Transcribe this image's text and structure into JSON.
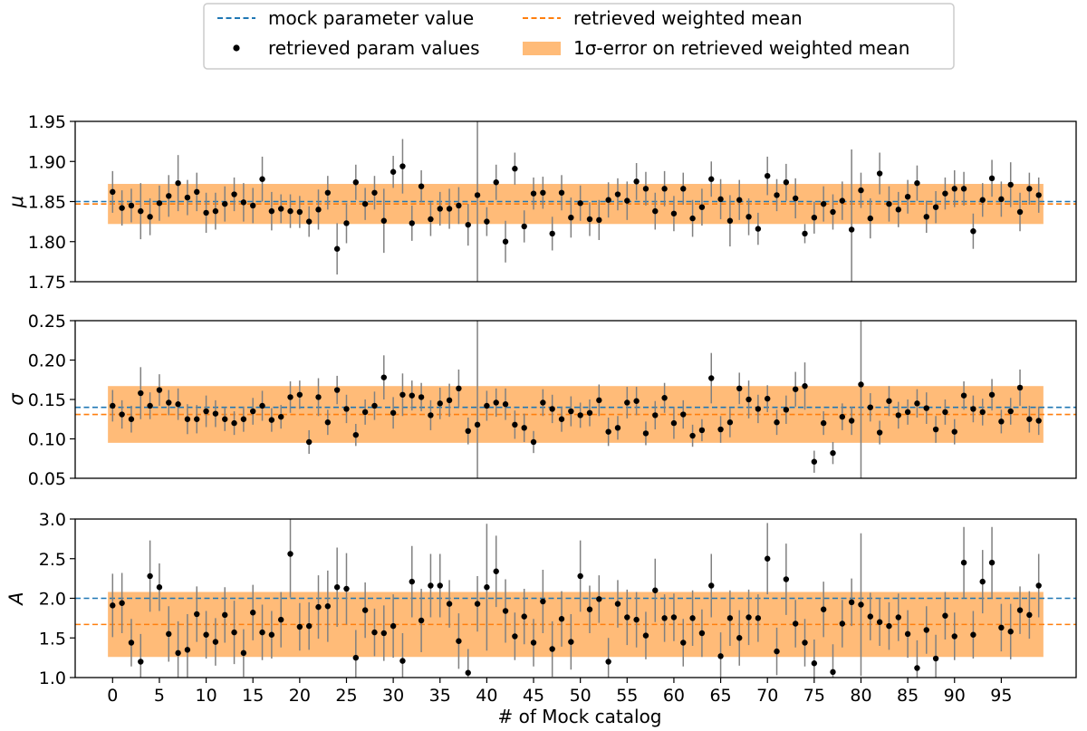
{
  "chart_data": {
    "type": "scatter",
    "xlabel": "# of Mock catalog",
    "x_ticks": [
      0,
      5,
      10,
      15,
      20,
      25,
      30,
      35,
      40,
      45,
      50,
      55,
      60,
      65,
      70,
      75,
      80,
      85,
      90,
      95
    ],
    "x_range": [
      -4,
      103
    ],
    "legend": {
      "placement": "top-center",
      "entries": [
        {
          "label": "mock parameter value",
          "kind": "dashed-line",
          "color": "#1f77b4"
        },
        {
          "label": "retrieved weighted mean",
          "kind": "dashed-line",
          "color": "#ff7f0e"
        },
        {
          "label": "retrieved param values",
          "kind": "point",
          "color": "#000000"
        },
        {
          "label": "1σ-error on retrieved weighted mean",
          "kind": "band",
          "color": "#ffbb78"
        }
      ]
    },
    "panels": [
      {
        "ylabel": "μ",
        "ylim": [
          1.75,
          1.95
        ],
        "y_ticks": [
          1.75,
          1.8,
          1.85,
          1.9,
          1.95
        ],
        "y_tick_labels": [
          "1.75",
          "1.80",
          "1.85",
          "1.90",
          "1.95"
        ],
        "mock_value": 1.85,
        "weighted_mean": 1.847,
        "band": [
          1.822,
          1.872
        ],
        "values": [
          1.862,
          1.842,
          1.845,
          1.838,
          1.831,
          1.848,
          1.857,
          1.873,
          1.855,
          1.862,
          1.836,
          1.838,
          1.847,
          1.859,
          1.849,
          1.845,
          1.878,
          1.838,
          1.841,
          1.838,
          1.837,
          1.825,
          1.84,
          1.861,
          1.791,
          1.823,
          1.874,
          1.847,
          1.861,
          1.826,
          1.887,
          1.894,
          1.823,
          1.869,
          1.828,
          1.841,
          1.841,
          1.845,
          1.821,
          1.858,
          1.825,
          1.874,
          1.8,
          1.891,
          1.819,
          1.86,
          1.861,
          1.81,
          1.861,
          1.83,
          1.848,
          1.828,
          1.827,
          1.852,
          1.859,
          1.851,
          1.875,
          1.866,
          1.838,
          1.866,
          1.835,
          1.866,
          1.829,
          1.843,
          1.878,
          1.853,
          1.826,
          1.852,
          1.831,
          1.816,
          1.882,
          1.858,
          1.874,
          1.854,
          1.81,
          1.83,
          1.847,
          1.837,
          1.851,
          1.815,
          1.864,
          1.829,
          1.885,
          1.847,
          1.84,
          1.856,
          1.873,
          1.831,
          1.843,
          1.86,
          1.866,
          1.866,
          1.813,
          1.852,
          1.879,
          1.853,
          1.871,
          1.837,
          1.866,
          1.858
        ],
        "errors": [
          0.026,
          0.022,
          0.021,
          0.035,
          0.023,
          0.022,
          0.026,
          0.035,
          0.022,
          0.024,
          0.025,
          0.023,
          0.022,
          0.021,
          0.024,
          0.022,
          0.028,
          0.024,
          0.018,
          0.021,
          0.02,
          0.019,
          0.025,
          0.021,
          0.032,
          0.025,
          0.022,
          0.02,
          0.021,
          0.04,
          0.02,
          0.034,
          0.022,
          0.02,
          0.021,
          0.021,
          0.025,
          0.023,
          0.026,
          0.116,
          0.018,
          0.022,
          0.026,
          0.02,
          0.02,
          0.02,
          0.02,
          0.021,
          0.022,
          0.025,
          0.022,
          0.021,
          0.025,
          0.022,
          0.02,
          0.024,
          0.023,
          0.021,
          0.023,
          0.022,
          0.022,
          0.02,
          0.023,
          0.023,
          0.022,
          0.025,
          0.032,
          0.025,
          0.023,
          0.02,
          0.024,
          0.02,
          0.023,
          0.025,
          0.012,
          0.02,
          0.022,
          0.022,
          0.024,
          0.1,
          0.022,
          0.025,
          0.026,
          0.022,
          0.022,
          0.021,
          0.022,
          0.02,
          0.02,
          0.02,
          0.023,
          0.021,
          0.022,
          0.021,
          0.023,
          0.022,
          0.028,
          0.024,
          0.02,
          0.022
        ]
      },
      {
        "ylabel": "σ",
        "ylim": [
          0.05,
          0.25
        ],
        "y_ticks": [
          0.05,
          0.1,
          0.15,
          0.2,
          0.25
        ],
        "y_tick_labels": [
          "0.05",
          "0.10",
          "0.15",
          "0.20",
          "0.25"
        ],
        "mock_value": 0.14,
        "weighted_mean": 0.131,
        "band": [
          0.095,
          0.167
        ],
        "values": [
          0.142,
          0.131,
          0.125,
          0.158,
          0.142,
          0.162,
          0.146,
          0.144,
          0.125,
          0.125,
          0.135,
          0.132,
          0.125,
          0.12,
          0.125,
          0.135,
          0.142,
          0.124,
          0.128,
          0.153,
          0.156,
          0.096,
          0.153,
          0.121,
          0.162,
          0.138,
          0.105,
          0.134,
          0.142,
          0.178,
          0.133,
          0.156,
          0.155,
          0.153,
          0.13,
          0.145,
          0.149,
          0.164,
          0.11,
          0.118,
          0.142,
          0.146,
          0.144,
          0.118,
          0.114,
          0.096,
          0.146,
          0.138,
          0.125,
          0.135,
          0.13,
          0.133,
          0.149,
          0.109,
          0.114,
          0.146,
          0.148,
          0.107,
          0.13,
          0.152,
          0.12,
          0.131,
          0.104,
          0.111,
          0.177,
          0.112,
          0.121,
          0.164,
          0.15,
          0.138,
          0.151,
          0.121,
          0.137,
          0.163,
          0.167,
          0.071,
          0.12,
          0.082,
          0.128,
          0.123,
          0.169,
          0.14,
          0.108,
          0.148,
          0.13,
          0.134,
          0.145,
          0.139,
          0.112,
          0.134,
          0.109,
          0.155,
          0.138,
          0.134,
          0.156,
          0.122,
          0.135,
          0.165,
          0.125,
          0.123
        ],
        "errors": [
          0.02,
          0.018,
          0.017,
          0.033,
          0.017,
          0.02,
          0.016,
          0.02,
          0.019,
          0.018,
          0.02,
          0.017,
          0.015,
          0.015,
          0.016,
          0.017,
          0.019,
          0.015,
          0.015,
          0.02,
          0.018,
          0.015,
          0.024,
          0.016,
          0.018,
          0.018,
          0.014,
          0.016,
          0.018,
          0.028,
          0.02,
          0.027,
          0.019,
          0.018,
          0.019,
          0.02,
          0.021,
          0.024,
          0.017,
          0.2,
          0.019,
          0.018,
          0.02,
          0.018,
          0.018,
          0.014,
          0.017,
          0.018,
          0.016,
          0.019,
          0.016,
          0.017,
          0.02,
          0.018,
          0.015,
          0.02,
          0.018,
          0.015,
          0.018,
          0.019,
          0.02,
          0.018,
          0.014,
          0.014,
          0.032,
          0.017,
          0.019,
          0.02,
          0.024,
          0.018,
          0.017,
          0.016,
          0.018,
          0.022,
          0.03,
          0.014,
          0.015,
          0.014,
          0.017,
          0.018,
          0.13,
          0.018,
          0.015,
          0.019,
          0.017,
          0.016,
          0.018,
          0.02,
          0.017,
          0.016,
          0.016,
          0.018,
          0.017,
          0.017,
          0.02,
          0.015,
          0.017,
          0.023,
          0.017,
          0.018
        ]
      },
      {
        "ylabel": "A",
        "ylim": [
          1.0,
          3.0
        ],
        "y_ticks": [
          1.0,
          1.5,
          2.0,
          2.5,
          3.0
        ],
        "y_tick_labels": [
          "1.0",
          "1.5",
          "2.0",
          "2.5",
          "3.0"
        ],
        "mock_value": 2.0,
        "weighted_mean": 1.67,
        "band": [
          1.26,
          2.08
        ],
        "values": [
          1.91,
          1.94,
          1.44,
          1.2,
          2.28,
          2.14,
          1.55,
          1.31,
          1.35,
          1.8,
          1.54,
          1.45,
          1.79,
          1.57,
          1.31,
          1.82,
          1.57,
          1.54,
          1.73,
          2.56,
          1.64,
          1.65,
          1.89,
          1.9,
          2.14,
          2.12,
          1.25,
          1.85,
          1.57,
          1.56,
          1.65,
          1.21,
          2.21,
          1.72,
          2.16,
          2.16,
          1.93,
          1.46,
          1.06,
          1.93,
          2.14,
          2.34,
          1.84,
          1.52,
          1.77,
          1.44,
          1.96,
          1.36,
          1.74,
          1.45,
          2.28,
          1.86,
          1.99,
          1.2,
          1.93,
          1.76,
          1.73,
          1.53,
          2.1,
          1.75,
          1.76,
          1.44,
          1.75,
          1.56,
          2.16,
          1.27,
          1.75,
          1.5,
          1.76,
          1.75,
          2.5,
          1.33,
          2.24,
          1.68,
          1.44,
          1.18,
          1.86,
          1.07,
          1.68,
          1.95,
          1.92,
          1.77,
          1.7,
          1.65,
          1.76,
          1.55,
          1.12,
          1.6,
          1.24,
          1.78,
          1.52,
          2.45,
          1.54,
          2.21,
          2.45,
          1.63,
          1.58,
          1.85,
          1.79,
          2.16
        ],
        "errors": [
          0.4,
          0.38,
          0.3,
          0.35,
          0.45,
          0.3,
          0.35,
          0.4,
          0.45,
          0.35,
          0.3,
          0.3,
          0.35,
          0.4,
          0.3,
          0.35,
          0.35,
          0.3,
          0.35,
          0.55,
          0.3,
          0.3,
          0.4,
          0.45,
          0.5,
          0.45,
          0.35,
          0.35,
          0.3,
          0.35,
          0.4,
          0.35,
          0.45,
          0.4,
          0.4,
          0.4,
          0.3,
          0.35,
          0.3,
          0.35,
          0.8,
          0.45,
          0.4,
          0.3,
          0.35,
          0.3,
          0.4,
          0.35,
          0.35,
          0.35,
          0.45,
          0.3,
          0.3,
          0.3,
          0.3,
          0.35,
          0.35,
          0.3,
          0.4,
          0.3,
          0.3,
          0.3,
          0.35,
          0.3,
          0.4,
          0.3,
          0.35,
          0.35,
          0.35,
          0.3,
          0.45,
          0.3,
          0.45,
          0.3,
          0.3,
          0.3,
          0.35,
          0.35,
          0.3,
          0.3,
          0.9,
          0.3,
          0.3,
          0.3,
          0.3,
          0.3,
          0.35,
          0.3,
          0.3,
          0.3,
          0.3,
          0.45,
          0.3,
          0.4,
          0.45,
          0.3,
          0.35,
          0.3,
          0.3,
          0.4
        ]
      }
    ]
  }
}
